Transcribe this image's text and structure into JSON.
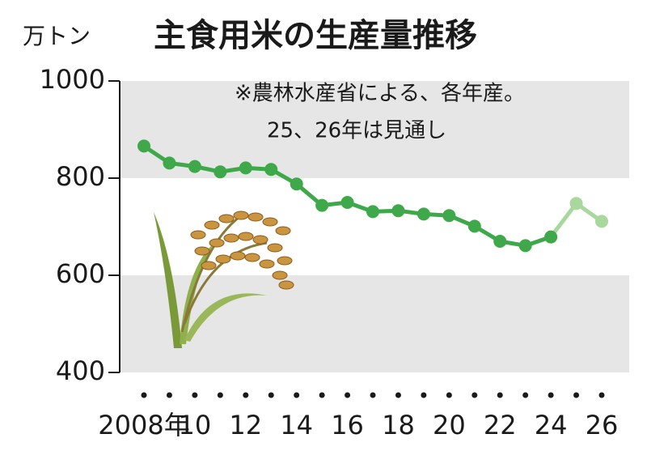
{
  "chart_data": {
    "type": "line",
    "title": "主食用米の生産量推移",
    "unit": "万トン",
    "note": [
      "※農林水産省による、各年産。",
      "25、26年は見通し"
    ],
    "categories": [
      "2008年",
      null,
      "10",
      null,
      "12",
      null,
      "14",
      null,
      "16",
      null,
      "18",
      null,
      "20",
      null,
      "22",
      null,
      "24",
      null,
      "26"
    ],
    "series": [
      {
        "color": "#3fa84a",
        "values": [
          866,
          831,
          824,
          813,
          821,
          818,
          788,
          744,
          750,
          731,
          733,
          726,
          723,
          701,
          670,
          661,
          679,
          null,
          null
        ]
      },
      {
        "color": "#a8d89e",
        "values": [
          null,
          null,
          null,
          null,
          null,
          null,
          null,
          null,
          null,
          null,
          null,
          null,
          null,
          null,
          null,
          null,
          679,
          748,
          711
        ]
      }
    ],
    "ylim": [
      400,
      1000
    ],
    "yticks": [
      400,
      600,
      800,
      1000
    ],
    "bands": true
  }
}
